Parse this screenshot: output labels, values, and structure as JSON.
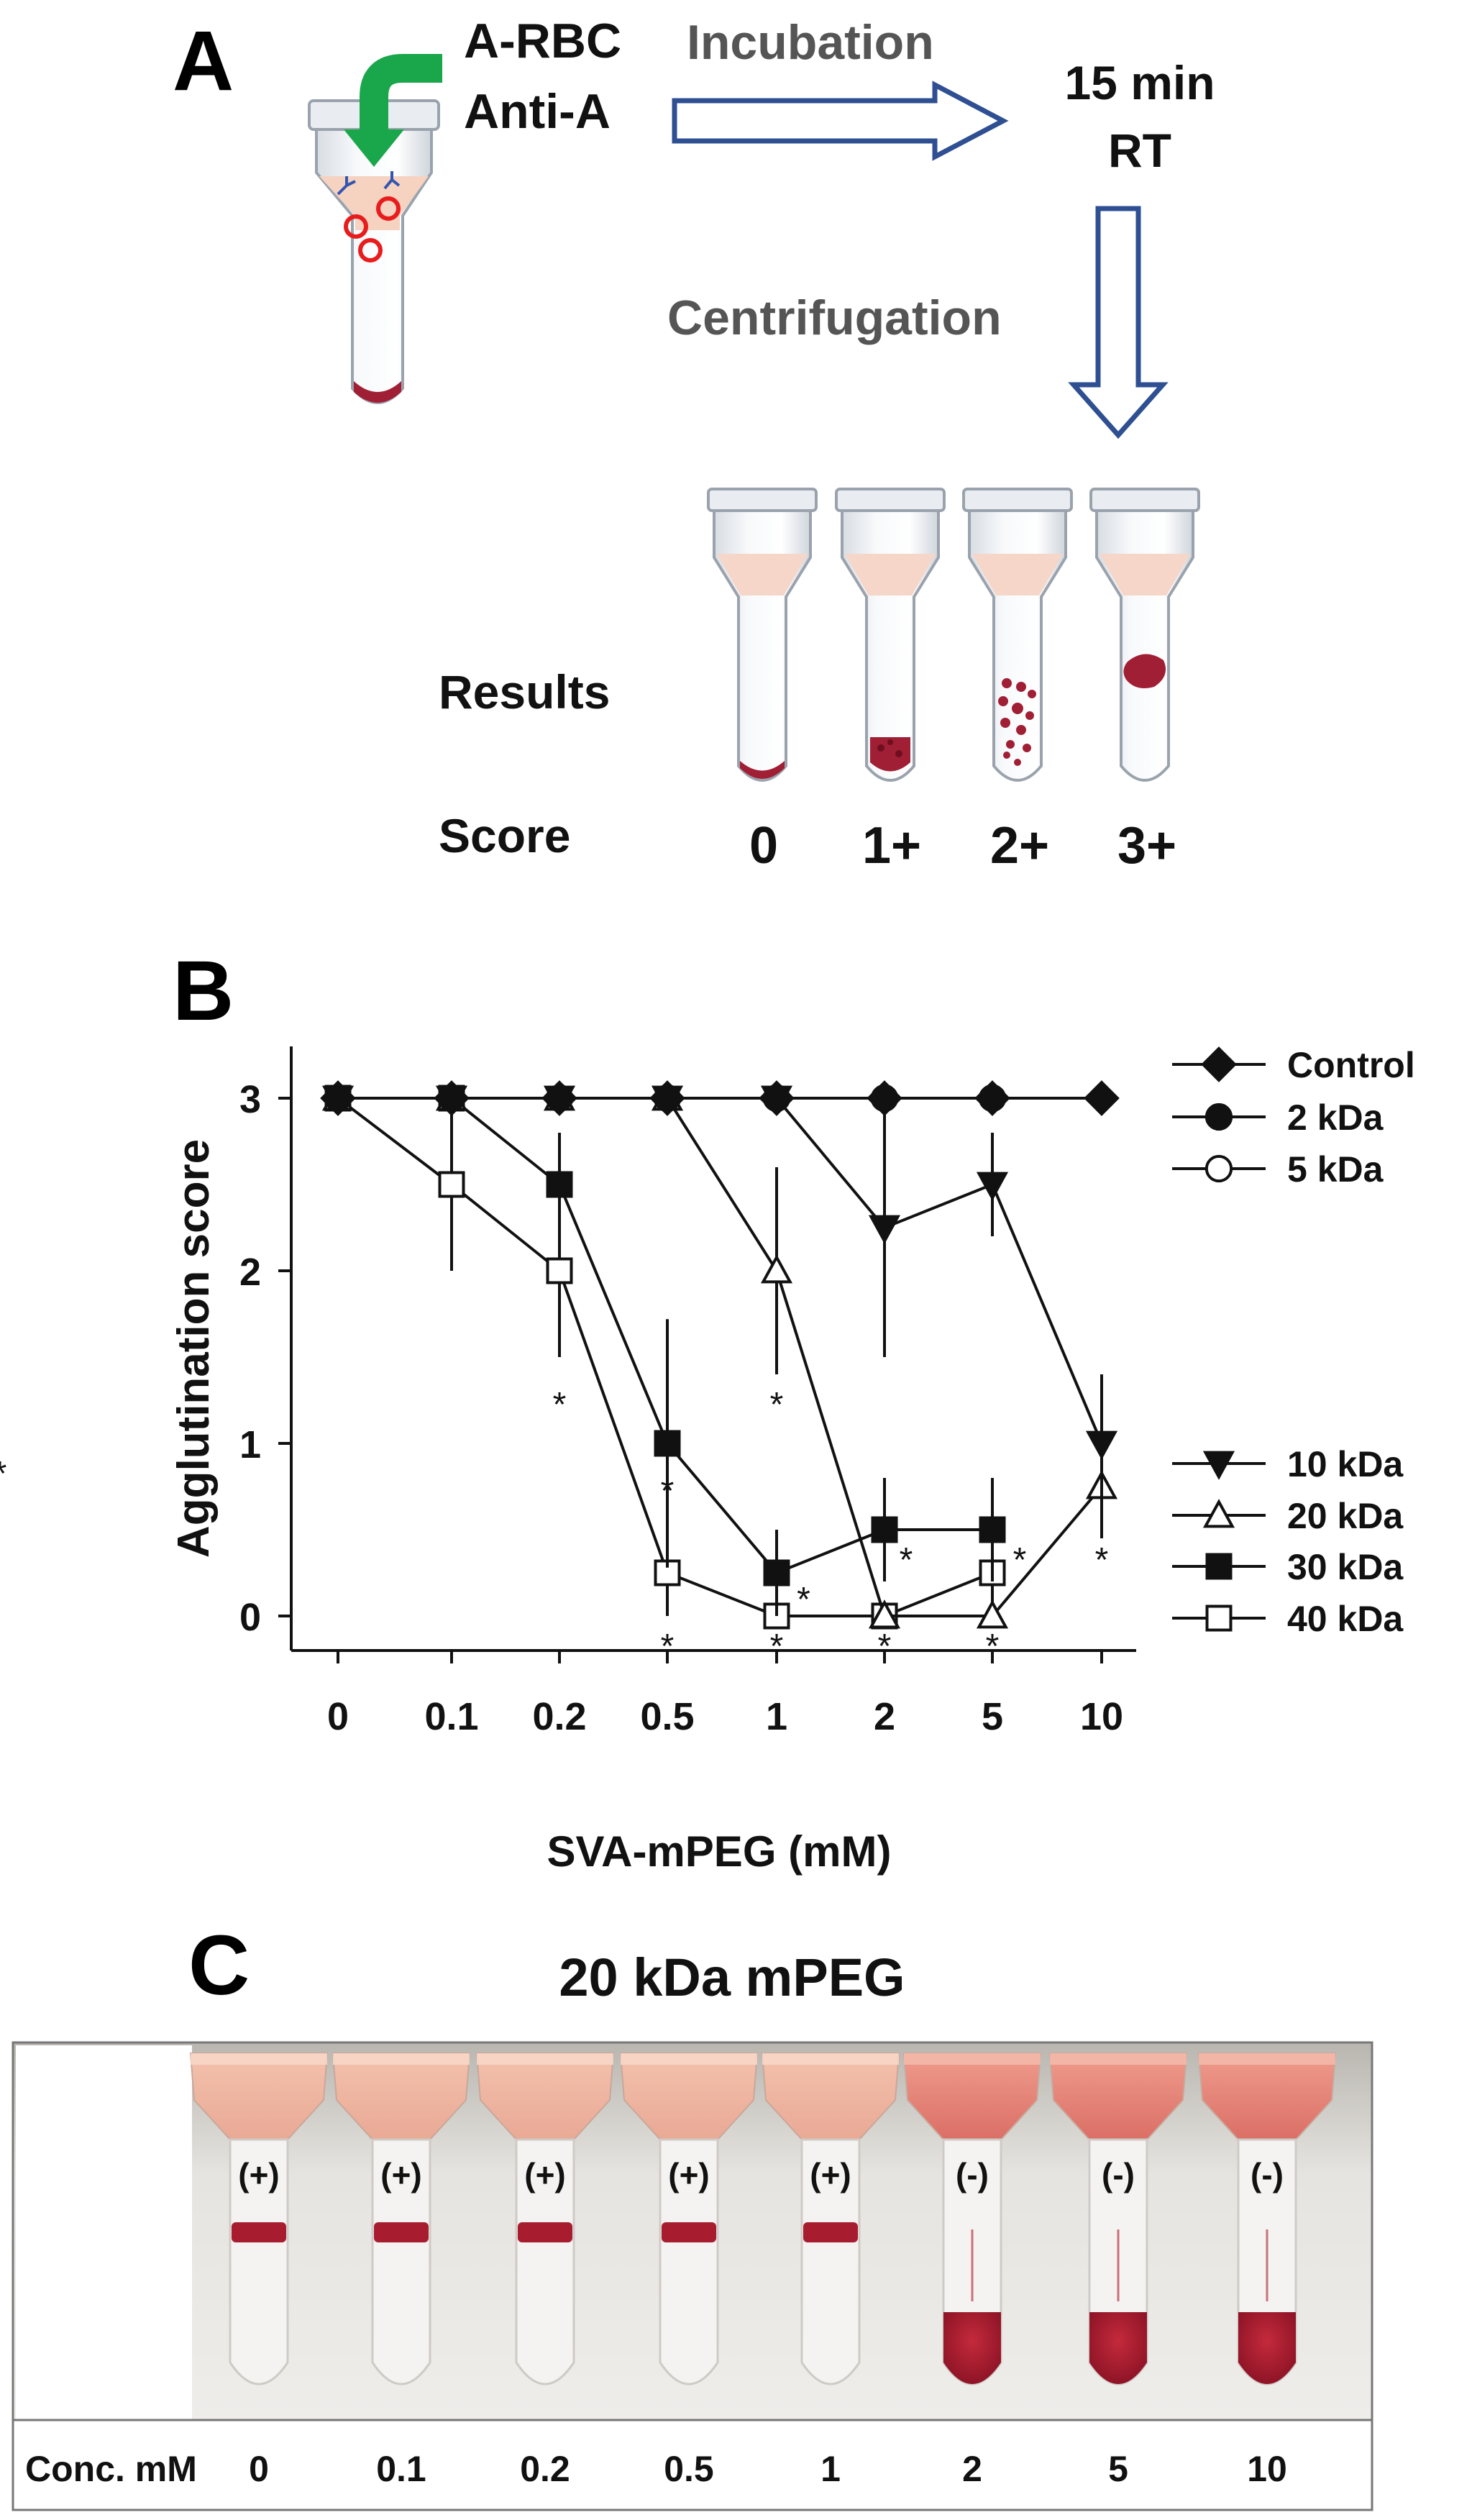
{
  "panel_a": {
    "label": "A",
    "reagent_1": "A-RBC",
    "reagent_2": "Anti-A",
    "step_incubation": "Incubation",
    "incubation_time": "15 min",
    "incubation_temp": "RT",
    "step_centrifugation": "Centrifugation",
    "results_label": "Results",
    "score_label": "Score",
    "scores": [
      "0",
      "1+",
      "2+",
      "3+"
    ]
  },
  "panel_b": {
    "label": "B"
  },
  "chart_data": {
    "type": "line",
    "xlabel": "SVA-mPEG (mM)",
    "ylabel": "Agglutination score",
    "categories": [
      "0",
      "0.1",
      "0.2",
      "0.5",
      "1",
      "2",
      "5",
      "10"
    ],
    "ylim": [
      -0.2,
      3.3
    ],
    "yticks": [
      "0",
      "1",
      "2",
      "3"
    ],
    "series": [
      {
        "name": "Control",
        "marker": "diamond-filled",
        "values": [
          3,
          3,
          3,
          3,
          3,
          3,
          3,
          3
        ],
        "err": [
          0,
          0,
          0,
          0,
          0,
          0,
          0,
          0
        ]
      },
      {
        "name": "2 kDa",
        "marker": "circle-filled",
        "values": [
          3,
          3,
          3,
          3,
          3,
          3,
          3,
          null
        ],
        "err": [
          0,
          0,
          0,
          0,
          0,
          0,
          0,
          0
        ]
      },
      {
        "name": "5 kDa",
        "marker": "circle-open",
        "values": [
          3,
          3,
          3,
          3,
          3,
          3,
          3,
          null
        ],
        "err": [
          0,
          0,
          0,
          0,
          0,
          0,
          0,
          0
        ]
      },
      {
        "name": "10 kDa",
        "marker": "triangle-down-filled",
        "values": [
          3,
          3,
          3,
          3,
          3,
          2.25,
          2.5,
          1
        ],
        "err": [
          0,
          0,
          0,
          0,
          0,
          0.75,
          0.3,
          0.4
        ]
      },
      {
        "name": "20 kDa",
        "marker": "triangle-up-open",
        "values": [
          3,
          3,
          3,
          3,
          2,
          0,
          0,
          0.75
        ],
        "err": [
          0,
          0,
          0,
          0,
          0.6,
          0,
          0,
          0.3
        ]
      },
      {
        "name": "30 kDa",
        "marker": "square-filled",
        "values": [
          3,
          3,
          2.5,
          1,
          0.25,
          0.5,
          0.5,
          null
        ],
        "err": [
          0,
          0,
          0.3,
          0.72,
          0.25,
          0.3,
          0.3,
          0
        ]
      },
      {
        "name": "40 kDa",
        "marker": "square-open",
        "values": [
          3,
          2.5,
          2,
          0.25,
          0,
          0,
          0.25,
          null
        ],
        "err": [
          0,
          0.5,
          0.5,
          0.25,
          0,
          0,
          0.25,
          0
        ]
      }
    ],
    "annotation_symbol": "*",
    "annotations": [
      {
        "x_index": 2,
        "y": 1.25
      },
      {
        "x_index": 3,
        "y": 0.75
      },
      {
        "x_index": 3,
        "y": -0.15
      },
      {
        "x_index": 4,
        "y": 1.25
      },
      {
        "x_index": 4,
        "y": -0.15
      },
      {
        "x_index": 4.25,
        "y": 0.12
      },
      {
        "x_index": 5,
        "y": -0.15
      },
      {
        "x_index": 5.2,
        "y": 0.35
      },
      {
        "x_index": 6,
        "y": -0.15
      },
      {
        "x_index": 6.25,
        "y": 0.35
      },
      {
        "x_index": 7,
        "y": 0.35
      },
      {
        "x_index": 7.25,
        "y": 0.85
      }
    ],
    "legend_position": "right"
  },
  "panel_c": {
    "label": "C",
    "title": "20 kDa mPEG",
    "conc_label": "Conc. mM",
    "tubes": [
      {
        "conc": "0",
        "result": "(+)"
      },
      {
        "conc": "0.1",
        "result": "(+)"
      },
      {
        "conc": "0.2",
        "result": "(+)"
      },
      {
        "conc": "0.5",
        "result": "(+)"
      },
      {
        "conc": "1",
        "result": "(+)"
      },
      {
        "conc": "2",
        "result": "(-)"
      },
      {
        "conc": "5",
        "result": "(-)"
      },
      {
        "conc": "10",
        "result": "(-)"
      }
    ]
  },
  "colors": {
    "arrow_green": "#1aa64b",
    "arrow_blue": "#2f4f93",
    "blood": "#a01f35",
    "serum": "#f6d6c8",
    "rbc_ring": "#e81c1c",
    "antibody": "#3354b0"
  }
}
